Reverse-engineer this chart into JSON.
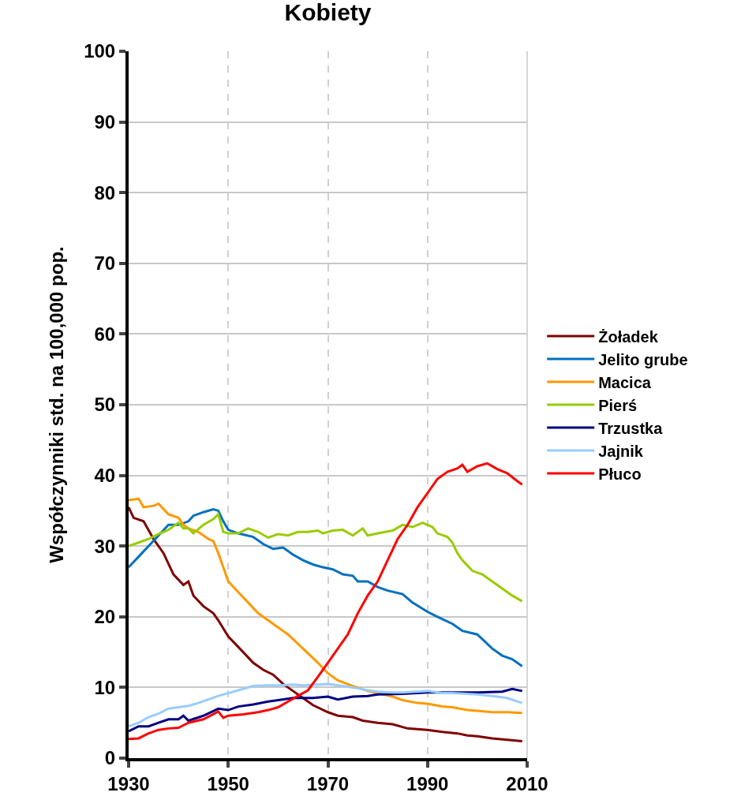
{
  "chart_data": {
    "type": "line",
    "title": "Kobiety",
    "ylabel": "Współczynniki std. na 100,000 pop.",
    "xlim": [
      1930,
      2010
    ],
    "xticks": [
      1930,
      1950,
      1970,
      1990,
      2010
    ],
    "ylim": [
      0,
      100
    ],
    "yticks": [
      0,
      10,
      20,
      30,
      40,
      50,
      60,
      70,
      80,
      90,
      100
    ],
    "grid": true,
    "legend": "right",
    "marker": "none",
    "line_style": "solid",
    "series": [
      {
        "name": "Żoładek",
        "color": "#800000",
        "x": [
          1930,
          1931,
          1933,
          1935,
          1937,
          1939,
          1941,
          1942,
          1943,
          1945,
          1947,
          1948,
          1950,
          1953,
          1955,
          1957,
          1959,
          1961,
          1963,
          1965,
          1967,
          1970,
          1972,
          1975,
          1977,
          1980,
          1983,
          1986,
          1990,
          1993,
          1996,
          1998,
          2000,
          2003,
          2006,
          2009
        ],
        "values": [
          35.5,
          34,
          33.5,
          31,
          29,
          26,
          24.5,
          25,
          23,
          21.5,
          20.5,
          19.5,
          17.2,
          15,
          13.5,
          12.5,
          11.8,
          10.5,
          9.5,
          8.5,
          7.5,
          6.5,
          6,
          5.8,
          5.3,
          5,
          4.8,
          4.2,
          4,
          3.7,
          3.5,
          3.2,
          3.1,
          2.8,
          2.6,
          2.4
        ]
      },
      {
        "name": "Jelito grube",
        "color": "#0070c0",
        "x": [
          1930,
          1932,
          1934,
          1936,
          1938,
          1940,
          1942,
          1943,
          1945,
          1947,
          1948,
          1949,
          1950,
          1952,
          1955,
          1957,
          1959,
          1961,
          1963,
          1965,
          1967,
          1969,
          1971,
          1973,
          1975,
          1976,
          1978,
          1980,
          1982,
          1985,
          1987,
          1990,
          1992,
          1995,
          1997,
          2000,
          2003,
          2005,
          2007,
          2009
        ],
        "values": [
          27,
          28.5,
          30,
          31.5,
          33,
          33,
          33.5,
          34.3,
          34.8,
          35.2,
          35,
          33.5,
          32.3,
          31.8,
          31.3,
          30.3,
          29.6,
          29.8,
          28.8,
          28,
          27.4,
          27,
          26.7,
          26,
          25.8,
          25,
          25,
          24.2,
          23.7,
          23.2,
          22,
          20.7,
          20,
          19,
          18,
          17.5,
          15.5,
          14.5,
          14,
          13
        ]
      },
      {
        "name": "Macica",
        "color": "#ff9900",
        "x": [
          1930,
          1932,
          1933,
          1935,
          1936,
          1938,
          1940,
          1941,
          1942,
          1944,
          1946,
          1947,
          1948,
          1949,
          1950,
          1952,
          1954,
          1956,
          1958,
          1960,
          1962,
          1965,
          1968,
          1970,
          1972,
          1975,
          1978,
          1980,
          1983,
          1985,
          1988,
          1990,
          1993,
          1995,
          1998,
          2000,
          2003,
          2006,
          2009
        ],
        "values": [
          36.5,
          36.7,
          35.5,
          35.7,
          36,
          34.5,
          34,
          33,
          32.5,
          32,
          31,
          30.7,
          29,
          27,
          25,
          23.5,
          22,
          20.5,
          19.5,
          18.5,
          17.5,
          15.5,
          13.5,
          12,
          11,
          10.2,
          9.5,
          9.2,
          8.7,
          8.2,
          7.8,
          7.7,
          7.3,
          7.2,
          6.8,
          6.7,
          6.5,
          6.5,
          6.4
        ]
      },
      {
        "name": "Pierś",
        "color": "#99cc00",
        "x": [
          1930,
          1932,
          1934,
          1936,
          1938,
          1940,
          1941,
          1942,
          1943,
          1945,
          1947,
          1948,
          1949,
          1950,
          1952,
          1954,
          1956,
          1958,
          1960,
          1962,
          1964,
          1966,
          1968,
          1969,
          1971,
          1973,
          1975,
          1977,
          1978,
          1980,
          1983,
          1985,
          1987,
          1989,
          1991,
          1992,
          1994,
          1995,
          1996,
          1997,
          1999,
          2001,
          2003,
          2005,
          2007,
          2009
        ],
        "values": [
          30,
          30.5,
          31,
          31.7,
          32.3,
          33.3,
          32.5,
          32.5,
          31.8,
          33,
          33.8,
          34.5,
          32,
          31.8,
          31.8,
          32.5,
          32,
          31.2,
          31.7,
          31.5,
          32,
          32,
          32.2,
          31.8,
          32.2,
          32.3,
          31.5,
          32.5,
          31.5,
          31.8,
          32.2,
          33,
          32.7,
          33.3,
          32.7,
          31.8,
          31.3,
          30.5,
          29,
          28,
          26.5,
          26,
          25,
          24,
          23,
          22.2
        ]
      },
      {
        "name": "Trzustka",
        "color": "#000080",
        "x": [
          1930,
          1932,
          1934,
          1936,
          1938,
          1940,
          1941,
          1942,
          1945,
          1948,
          1950,
          1952,
          1955,
          1958,
          1960,
          1963,
          1965,
          1967,
          1970,
          1972,
          1975,
          1978,
          1980,
          1985,
          1990,
          1995,
          2000,
          2005,
          2007,
          2009
        ],
        "values": [
          3.8,
          4.5,
          4.5,
          5,
          5.5,
          5.5,
          6,
          5.3,
          6,
          7,
          6.8,
          7.3,
          7.6,
          8,
          8.2,
          8.5,
          8.5,
          8.5,
          8.7,
          8.3,
          8.7,
          8.8,
          9,
          9.1,
          9.3,
          9.3,
          9.3,
          9.4,
          9.8,
          9.5
        ]
      },
      {
        "name": "Jajnik",
        "color": "#99ccff",
        "x": [
          1930,
          1932,
          1934,
          1936,
          1938,
          1940,
          1942,
          1944,
          1946,
          1948,
          1950,
          1953,
          1955,
          1958,
          1960,
          1963,
          1965,
          1968,
          1970,
          1973,
          1975,
          1978,
          1980,
          1983,
          1985,
          1990,
          1993,
          1995,
          2000,
          2003,
          2006,
          2009
        ],
        "values": [
          4.5,
          5,
          5.8,
          6.3,
          7,
          7.2,
          7.4,
          7.8,
          8.3,
          8.8,
          9.2,
          9.8,
          10.2,
          10.3,
          10.3,
          10.4,
          10.3,
          10.4,
          10.5,
          10.2,
          10,
          9.6,
          9.4,
          9.3,
          9.3,
          9.5,
          9.2,
          9.2,
          9,
          8.8,
          8.5,
          7.8
        ]
      },
      {
        "name": "Płuco",
        "color": "#ff0000",
        "x": [
          1930,
          1932,
          1934,
          1936,
          1938,
          1940,
          1942,
          1945,
          1948,
          1949,
          1950,
          1953,
          1956,
          1958,
          1960,
          1962,
          1964,
          1966,
          1968,
          1970,
          1972,
          1974,
          1976,
          1978,
          1980,
          1982,
          1984,
          1986,
          1988,
          1990,
          1992,
          1994,
          1996,
          1997,
          1998,
          2000,
          2002,
          2004,
          2006,
          2008,
          2009
        ],
        "values": [
          2.7,
          2.8,
          3.5,
          4,
          4.2,
          4.3,
          5,
          5.5,
          6.6,
          5.7,
          6,
          6.2,
          6.5,
          6.8,
          7.2,
          8,
          8.8,
          9.6,
          11.5,
          13.5,
          15.5,
          17.5,
          20.5,
          23,
          25,
          28,
          31,
          33,
          35.5,
          37.5,
          39.5,
          40.5,
          41,
          41.5,
          40.5,
          41.3,
          41.7,
          40.9,
          40.3,
          39.2,
          38.7
        ]
      }
    ]
  }
}
